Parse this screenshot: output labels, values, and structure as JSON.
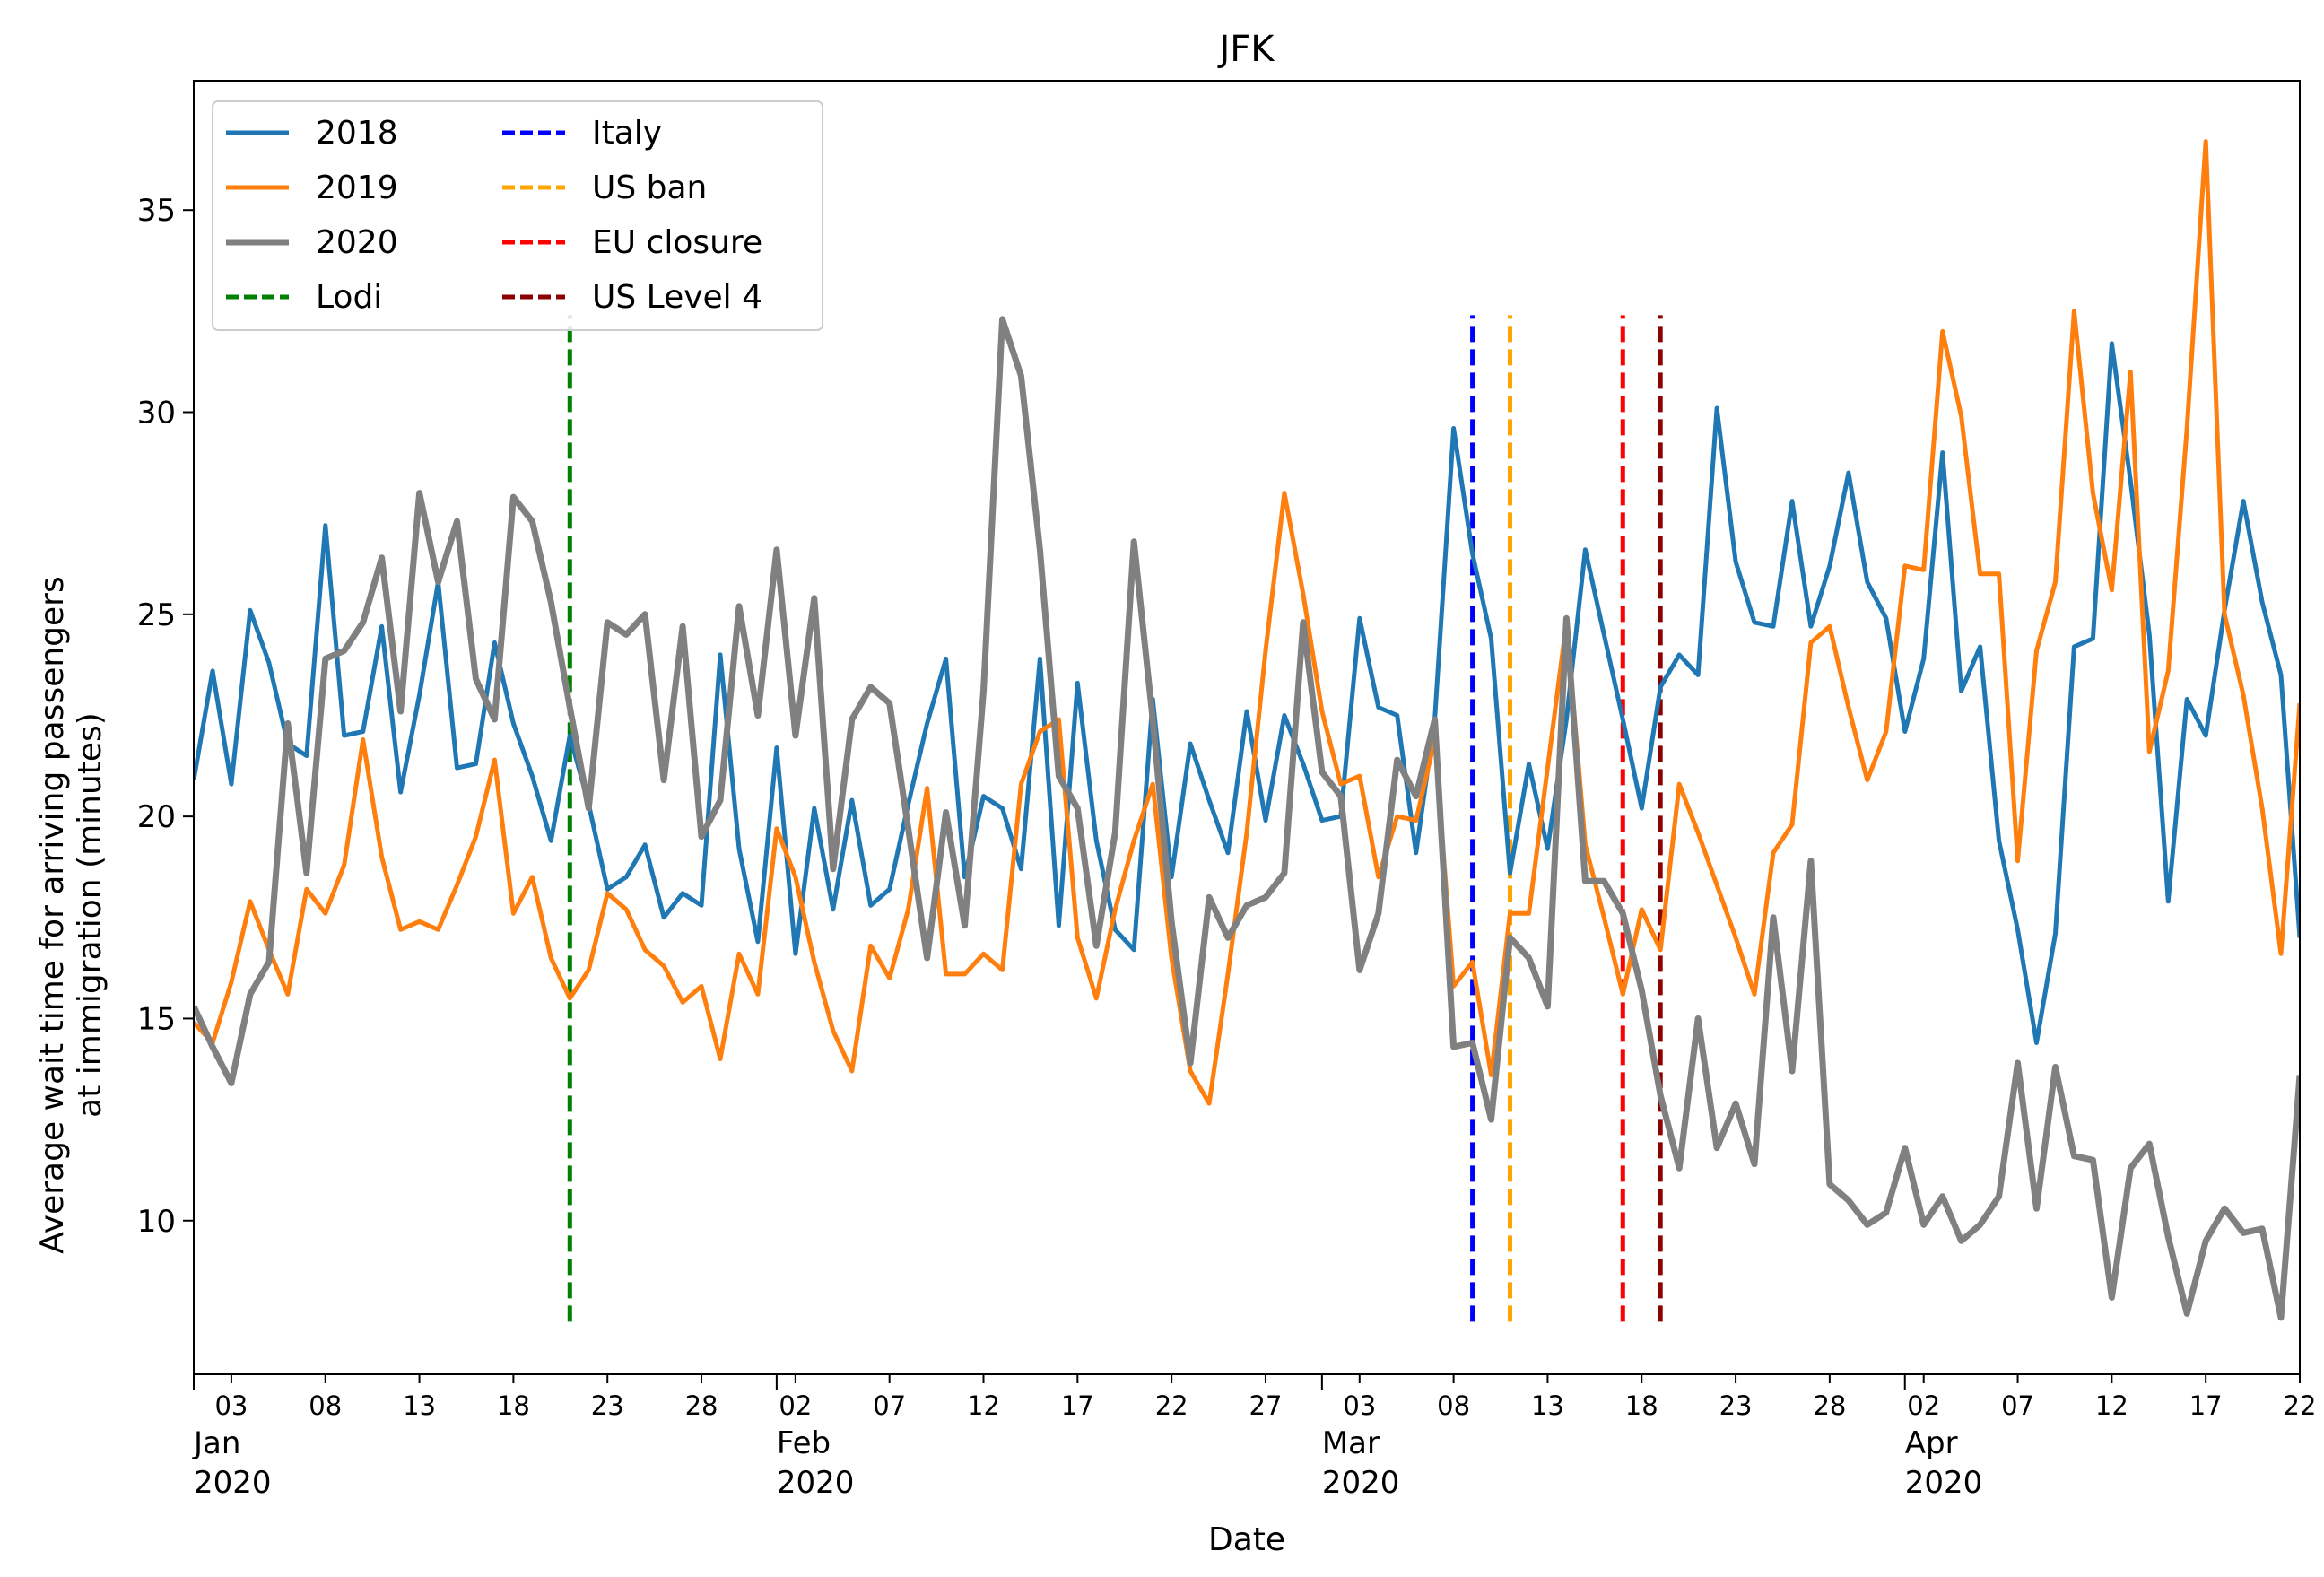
{
  "chart_data": {
    "type": "line",
    "title": "JFK",
    "xlabel": "Date",
    "ylabel_line1": "Average wait time for arriving passengers",
    "ylabel_line2": "at immigration (minutes)",
    "ylim": [
      6.2,
      38.2
    ],
    "xrange_days": [
      1,
      113
    ],
    "day_indexing": "day 1 = Jan 01 2020; day 113 = Apr 22 2020 (2020 calendar)",
    "yticks": [
      10,
      15,
      20,
      25,
      30,
      35
    ],
    "xticks_minor": [
      {
        "day": 3,
        "label": "03"
      },
      {
        "day": 8,
        "label": "08"
      },
      {
        "day": 13,
        "label": "13"
      },
      {
        "day": 18,
        "label": "18"
      },
      {
        "day": 23,
        "label": "23"
      },
      {
        "day": 28,
        "label": "28"
      },
      {
        "day": 33,
        "label": "02"
      },
      {
        "day": 38,
        "label": "07"
      },
      {
        "day": 43,
        "label": "12"
      },
      {
        "day": 48,
        "label": "17"
      },
      {
        "day": 53,
        "label": "22"
      },
      {
        "day": 58,
        "label": "27"
      },
      {
        "day": 63,
        "label": "03"
      },
      {
        "day": 68,
        "label": "08"
      },
      {
        "day": 73,
        "label": "13"
      },
      {
        "day": 78,
        "label": "18"
      },
      {
        "day": 83,
        "label": "23"
      },
      {
        "day": 88,
        "label": "28"
      },
      {
        "day": 93,
        "label": "02"
      },
      {
        "day": 98,
        "label": "07"
      },
      {
        "day": 103,
        "label": "12"
      },
      {
        "day": 108,
        "label": "17"
      },
      {
        "day": 113,
        "label": "22"
      }
    ],
    "xticks_major": [
      {
        "day": 1,
        "month": "Jan",
        "year": "2020"
      },
      {
        "day": 32,
        "month": "Feb",
        "year": "2020"
      },
      {
        "day": 61,
        "month": "Mar",
        "year": "2020"
      },
      {
        "day": 92,
        "month": "Apr",
        "year": "2020"
      }
    ],
    "series": [
      {
        "name": "2018",
        "color": "#1f77b4",
        "width": 5,
        "values": [
          20.9,
          23.6,
          20.8,
          25.1,
          23.8,
          21.8,
          21.5,
          27.2,
          22.0,
          22.1,
          24.7,
          20.6,
          23.0,
          25.8,
          21.2,
          21.3,
          24.3,
          22.3,
          21.0,
          19.4,
          22.0,
          20.3,
          18.2,
          18.5,
          19.3,
          17.5,
          18.1,
          17.8,
          24.0,
          19.2,
          16.9,
          21.7,
          16.6,
          20.2,
          17.7,
          20.4,
          17.8,
          18.2,
          20.3,
          22.3,
          23.9,
          18.5,
          20.5,
          20.2,
          18.7,
          23.9,
          17.3,
          23.3,
          19.4,
          17.2,
          16.7,
          22.9,
          18.5,
          21.8,
          20.4,
          19.1,
          22.6,
          19.9,
          22.5,
          21.3,
          19.9,
          20.0,
          24.9,
          22.7,
          22.5,
          19.1,
          22.4,
          29.6,
          26.5,
          24.4,
          18.6,
          21.3,
          19.2,
          22.4,
          26.6,
          24.5,
          22.4,
          20.2,
          23.2,
          24.0,
          23.5,
          30.1,
          26.3,
          24.8,
          24.7,
          27.8,
          24.7,
          26.2,
          28.5,
          25.8,
          24.9,
          22.1,
          23.9,
          29.0,
          23.1,
          24.2,
          19.4,
          17.2,
          14.4,
          17.1,
          24.2,
          24.4,
          31.7,
          28.3,
          24.5,
          17.9,
          22.9,
          22.0,
          25.1,
          27.8,
          25.3,
          23.5,
          17.0
        ]
      },
      {
        "name": "2019",
        "color": "#ff7f0e",
        "width": 5,
        "values": [
          14.9,
          14.4,
          15.9,
          17.9,
          16.7,
          15.6,
          18.2,
          17.6,
          18.8,
          21.9,
          19.0,
          17.2,
          17.4,
          17.2,
          18.3,
          19.5,
          21.4,
          17.6,
          18.5,
          16.5,
          15.5,
          16.2,
          18.1,
          17.7,
          16.7,
          16.3,
          15.4,
          15.8,
          14.0,
          16.6,
          15.6,
          19.7,
          18.5,
          16.4,
          14.7,
          13.7,
          16.8,
          16.0,
          17.7,
          20.7,
          16.1,
          16.1,
          16.6,
          16.2,
          20.8,
          22.1,
          22.4,
          17.0,
          15.5,
          17.7,
          19.4,
          20.8,
          16.5,
          13.7,
          12.9,
          16.1,
          19.6,
          24.1,
          28.0,
          25.5,
          22.6,
          20.8,
          21.0,
          18.5,
          20.0,
          19.9,
          21.9,
          15.8,
          16.4,
          13.6,
          17.6,
          17.6,
          21.2,
          24.8,
          19.3,
          17.5,
          15.6,
          17.7,
          16.7,
          20.8,
          19.6,
          18.3,
          17.0,
          15.6,
          19.1,
          19.8,
          24.3,
          24.7,
          22.7,
          20.9,
          22.1,
          26.2,
          26.1,
          32.0,
          29.9,
          26.0,
          26.0,
          18.9,
          24.1,
          25.8,
          32.5,
          28.0,
          25.6,
          31.0,
          21.6,
          23.6,
          29.6,
          36.7,
          25.0,
          23.0,
          20.2,
          16.6,
          22.8
        ]
      },
      {
        "name": "2020",
        "color": "#808080",
        "width": 7,
        "values": [
          15.3,
          14.3,
          13.4,
          15.6,
          16.4,
          22.3,
          18.6,
          23.9,
          24.1,
          24.8,
          26.4,
          22.6,
          28.0,
          25.8,
          27.3,
          23.4,
          22.4,
          27.9,
          27.3,
          25.3,
          22.7,
          20.2,
          24.8,
          24.5,
          25.0,
          20.9,
          24.7,
          19.5,
          20.4,
          25.2,
          22.5,
          26.6,
          22.0,
          25.4,
          18.7,
          22.4,
          23.2,
          22.8,
          19.7,
          16.5,
          20.1,
          17.3,
          23.1,
          32.3,
          30.9,
          26.6,
          21.0,
          20.2,
          16.8,
          19.6,
          26.8,
          22.4,
          17.4,
          13.9,
          18.0,
          17.0,
          17.8,
          18.0,
          18.6,
          24.8,
          21.1,
          20.5,
          16.2,
          17.6,
          21.4,
          20.5,
          22.4,
          14.3,
          14.4,
          12.5,
          17.0,
          16.5,
          15.3,
          24.9,
          18.4,
          18.4,
          17.6,
          15.7,
          13.1,
          11.3,
          15.0,
          11.8,
          12.9,
          11.4,
          17.5,
          13.7,
          18.9,
          10.9,
          10.5,
          9.9,
          10.2,
          11.8,
          9.9,
          10.6,
          9.5,
          9.9,
          10.6,
          13.9,
          10.3,
          13.8,
          11.6,
          11.5,
          8.1,
          11.3,
          11.9,
          9.6,
          7.7,
          9.5,
          10.3,
          9.7,
          9.8,
          7.6,
          13.6
        ]
      }
    ],
    "events": [
      {
        "name": "Lodi",
        "day": 21,
        "color": "#008000"
      },
      {
        "name": "Italy",
        "day": 69,
        "color": "#0000ff"
      },
      {
        "name": "US ban",
        "day": 71,
        "color": "#ffa500"
      },
      {
        "name": "EU closure",
        "day": 77,
        "color": "#ff0000"
      },
      {
        "name": "US Level 4",
        "day": 79,
        "color": "#8b0000"
      }
    ],
    "event_line_yrange": [
      7.5,
      32.4
    ],
    "legend": {
      "location": "top-left",
      "columns": 2,
      "entries": [
        "2018",
        "2019",
        "2020",
        "Lodi",
        "Italy",
        "US ban",
        "EU closure",
        "US Level 4"
      ]
    },
    "grid": false
  }
}
